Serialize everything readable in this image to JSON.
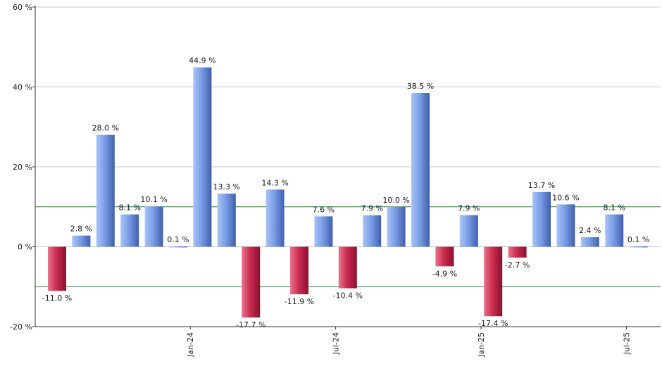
{
  "chart_data": {
    "type": "bar",
    "title": "",
    "xlabel": "",
    "ylabel": "",
    "ylim": [
      -20,
      60
    ],
    "y_ticks": [
      -20,
      0,
      20,
      40,
      60
    ],
    "y_tick_suffix": " %",
    "grid": true,
    "reference_lines": [
      10,
      -10
    ],
    "x_tick_labels": [
      {
        "label": "Jan-24",
        "after_bar": 5
      },
      {
        "label": "Jul-24",
        "after_bar": 11
      },
      {
        "label": "Jan-25",
        "after_bar": 17
      },
      {
        "label": "Jul-25",
        "after_bar": 23
      }
    ],
    "values": [
      -11.0,
      2.8,
      28.0,
      8.1,
      10.1,
      0.1,
      44.9,
      13.3,
      -17.7,
      14.3,
      -11.9,
      7.6,
      -10.4,
      7.9,
      10.0,
      38.5,
      -4.9,
      7.9,
      -17.4,
      -2.7,
      13.7,
      10.6,
      2.4,
      8.1,
      0.1
    ],
    "data_labels": [
      "-11.0 %",
      "2.8 %",
      "28.0 %",
      "8.1 %",
      "10.1 %",
      "0.1 %",
      "44.9 %",
      "13.3 %",
      "-17.7 %",
      "14.3 %",
      "-11.9 %",
      "7.6 %",
      "-10.4 %",
      "7.9 %",
      "10.0 %",
      "38.5 %",
      "-4.9 %",
      "7.9 %",
      "-17.4 %",
      "-2.7 %",
      "13.7 %",
      "10.6 %",
      "2.4 %",
      "8.1 %",
      "0.1 %"
    ],
    "colors": {
      "positive_light": "#a9c4f5",
      "positive_mid": "#7a9de6",
      "positive_dark": "#3f5fae",
      "negative_light": "#e8758c",
      "negative_mid": "#cc2d50",
      "negative_dark": "#8a1030",
      "reference_line": "#2e7d32",
      "grid": "#c8c8c8",
      "axis": "#333333"
    }
  }
}
